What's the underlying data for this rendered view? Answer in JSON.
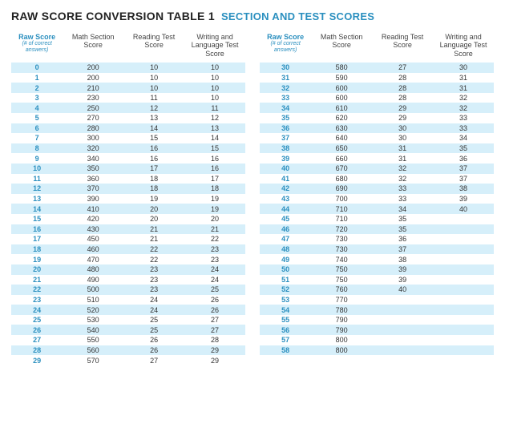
{
  "title": {
    "main": "RAW SCORE CONVERSION TABLE 1",
    "sub": "SECTION AND TEST SCORES"
  },
  "headers": {
    "raw": "Raw Score",
    "raw_sub": "(# of correct answers)",
    "math": "Math Section Score",
    "reading": "Reading Test Score",
    "writing": "Writing and Language Test Score"
  },
  "style": {
    "stripe_color": "#d6effa",
    "accent_color": "#2a8fbf",
    "text_color": "#333",
    "font_size_body": 9,
    "font_size_title": 14
  },
  "left_rows": [
    {
      "raw": "0",
      "math": "200",
      "reading": "10",
      "writing": "10"
    },
    {
      "raw": "1",
      "math": "200",
      "reading": "10",
      "writing": "10"
    },
    {
      "raw": "2",
      "math": "210",
      "reading": "10",
      "writing": "10"
    },
    {
      "raw": "3",
      "math": "230",
      "reading": "11",
      "writing": "10"
    },
    {
      "raw": "4",
      "math": "250",
      "reading": "12",
      "writing": "11"
    },
    {
      "raw": "5",
      "math": "270",
      "reading": "13",
      "writing": "12"
    },
    {
      "raw": "6",
      "math": "280",
      "reading": "14",
      "writing": "13"
    },
    {
      "raw": "7",
      "math": "300",
      "reading": "15",
      "writing": "14"
    },
    {
      "raw": "8",
      "math": "320",
      "reading": "16",
      "writing": "15"
    },
    {
      "raw": "9",
      "math": "340",
      "reading": "16",
      "writing": "16"
    },
    {
      "raw": "10",
      "math": "350",
      "reading": "17",
      "writing": "16"
    },
    {
      "raw": "11",
      "math": "360",
      "reading": "18",
      "writing": "17"
    },
    {
      "raw": "12",
      "math": "370",
      "reading": "18",
      "writing": "18"
    },
    {
      "raw": "13",
      "math": "390",
      "reading": "19",
      "writing": "19"
    },
    {
      "raw": "14",
      "math": "410",
      "reading": "20",
      "writing": "19"
    },
    {
      "raw": "15",
      "math": "420",
      "reading": "20",
      "writing": "20"
    },
    {
      "raw": "16",
      "math": "430",
      "reading": "21",
      "writing": "21"
    },
    {
      "raw": "17",
      "math": "450",
      "reading": "21",
      "writing": "22"
    },
    {
      "raw": "18",
      "math": "460",
      "reading": "22",
      "writing": "23"
    },
    {
      "raw": "19",
      "math": "470",
      "reading": "22",
      "writing": "23"
    },
    {
      "raw": "20",
      "math": "480",
      "reading": "23",
      "writing": "24"
    },
    {
      "raw": "21",
      "math": "490",
      "reading": "23",
      "writing": "24"
    },
    {
      "raw": "22",
      "math": "500",
      "reading": "23",
      "writing": "25"
    },
    {
      "raw": "23",
      "math": "510",
      "reading": "24",
      "writing": "26"
    },
    {
      "raw": "24",
      "math": "520",
      "reading": "24",
      "writing": "26"
    },
    {
      "raw": "25",
      "math": "530",
      "reading": "25",
      "writing": "27"
    },
    {
      "raw": "26",
      "math": "540",
      "reading": "25",
      "writing": "27"
    },
    {
      "raw": "27",
      "math": "550",
      "reading": "26",
      "writing": "28"
    },
    {
      "raw": "28",
      "math": "560",
      "reading": "26",
      "writing": "29"
    },
    {
      "raw": "29",
      "math": "570",
      "reading": "27",
      "writing": "29"
    }
  ],
  "right_rows": [
    {
      "raw": "30",
      "math": "580",
      "reading": "27",
      "writing": "30"
    },
    {
      "raw": "31",
      "math": "590",
      "reading": "28",
      "writing": "31"
    },
    {
      "raw": "32",
      "math": "600",
      "reading": "28",
      "writing": "31"
    },
    {
      "raw": "33",
      "math": "600",
      "reading": "28",
      "writing": "32"
    },
    {
      "raw": "34",
      "math": "610",
      "reading": "29",
      "writing": "32"
    },
    {
      "raw": "35",
      "math": "620",
      "reading": "29",
      "writing": "33"
    },
    {
      "raw": "36",
      "math": "630",
      "reading": "30",
      "writing": "33"
    },
    {
      "raw": "37",
      "math": "640",
      "reading": "30",
      "writing": "34"
    },
    {
      "raw": "38",
      "math": "650",
      "reading": "31",
      "writing": "35"
    },
    {
      "raw": "39",
      "math": "660",
      "reading": "31",
      "writing": "36"
    },
    {
      "raw": "40",
      "math": "670",
      "reading": "32",
      "writing": "37"
    },
    {
      "raw": "41",
      "math": "680",
      "reading": "32",
      "writing": "37"
    },
    {
      "raw": "42",
      "math": "690",
      "reading": "33",
      "writing": "38"
    },
    {
      "raw": "43",
      "math": "700",
      "reading": "33",
      "writing": "39"
    },
    {
      "raw": "44",
      "math": "710",
      "reading": "34",
      "writing": "40"
    },
    {
      "raw": "45",
      "math": "710",
      "reading": "35",
      "writing": ""
    },
    {
      "raw": "46",
      "math": "720",
      "reading": "35",
      "writing": ""
    },
    {
      "raw": "47",
      "math": "730",
      "reading": "36",
      "writing": ""
    },
    {
      "raw": "48",
      "math": "730",
      "reading": "37",
      "writing": ""
    },
    {
      "raw": "49",
      "math": "740",
      "reading": "38",
      "writing": ""
    },
    {
      "raw": "50",
      "math": "750",
      "reading": "39",
      "writing": ""
    },
    {
      "raw": "51",
      "math": "750",
      "reading": "39",
      "writing": ""
    },
    {
      "raw": "52",
      "math": "760",
      "reading": "40",
      "writing": ""
    },
    {
      "raw": "53",
      "math": "770",
      "reading": "",
      "writing": ""
    },
    {
      "raw": "54",
      "math": "780",
      "reading": "",
      "writing": ""
    },
    {
      "raw": "55",
      "math": "790",
      "reading": "",
      "writing": ""
    },
    {
      "raw": "56",
      "math": "790",
      "reading": "",
      "writing": ""
    },
    {
      "raw": "57",
      "math": "800",
      "reading": "",
      "writing": ""
    },
    {
      "raw": "58",
      "math": "800",
      "reading": "",
      "writing": ""
    }
  ]
}
